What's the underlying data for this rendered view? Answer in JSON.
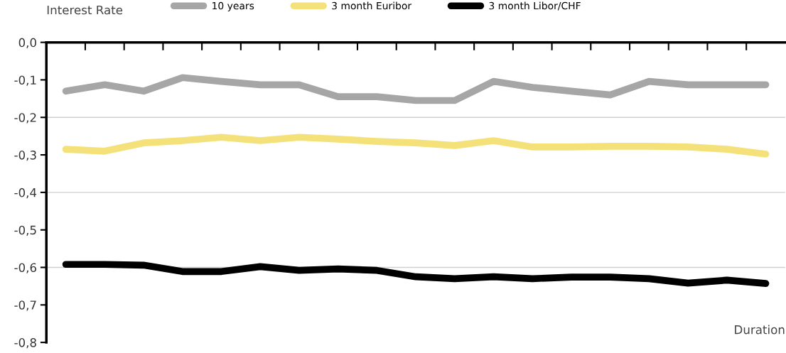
{
  "chart_data": {
    "type": "line",
    "ylabel": "Interest Rate",
    "xlabel": "Duration",
    "categories": [
      null,
      null,
      null,
      null,
      null,
      null,
      null,
      null,
      null,
      null,
      null,
      null,
      null,
      null,
      null,
      null,
      null,
      null,
      null
    ],
    "series": [
      {
        "name": "10 years",
        "color": "#a6a6a6",
        "values": [
          -0.13,
          -0.113,
          -0.13,
          -0.094,
          -0.104,
          -0.113,
          -0.113,
          -0.145,
          -0.145,
          -0.155,
          -0.155,
          -0.104,
          -0.12,
          -0.13,
          -0.14,
          -0.104,
          -0.113,
          -0.113,
          -0.113
        ]
      },
      {
        "name": "3 month Euribor",
        "color": "#f5e17a",
        "values": [
          -0.285,
          -0.29,
          -0.268,
          -0.262,
          -0.253,
          -0.262,
          -0.253,
          -0.258,
          -0.264,
          -0.268,
          -0.275,
          -0.262,
          -0.279,
          -0.279,
          -0.277,
          -0.277,
          -0.279,
          -0.285,
          -0.298
        ]
      },
      {
        "name": "3 month Libor/CHF",
        "color": "#000000",
        "values": [
          -0.592,
          -0.592,
          -0.594,
          -0.611,
          -0.611,
          -0.598,
          -0.608,
          -0.604,
          -0.608,
          -0.625,
          -0.63,
          -0.625,
          -0.63,
          -0.626,
          -0.626,
          -0.63,
          -0.642,
          -0.634,
          -0.643
        ]
      }
    ],
    "ylim": [
      -0.8,
      0
    ],
    "yticks": [
      {
        "value": 0,
        "label": "0,0"
      },
      {
        "value": -0.1,
        "label": "-0,1"
      },
      {
        "value": -0.2,
        "label": "-0,2"
      },
      {
        "value": -0.3,
        "label": "-0,3"
      },
      {
        "value": -0.4,
        "label": "-0,4"
      },
      {
        "value": -0.5,
        "label": "-0,5"
      },
      {
        "value": -0.6,
        "label": "-0,6"
      },
      {
        "value": -0.7,
        "label": "-0,7"
      },
      {
        "value": -0.8,
        "label": "-0,8"
      }
    ],
    "ref_lines": [
      {
        "axis": "y",
        "value": -0.2,
        "color": "#d0d0d0"
      },
      {
        "axis": "y",
        "value": -0.4,
        "color": "#d0d0d0"
      },
      {
        "axis": "y",
        "value": -0.6,
        "color": "#d0d0d0"
      }
    ],
    "legend": "top",
    "grid": false,
    "marker": "none",
    "line_style": "solid"
  }
}
